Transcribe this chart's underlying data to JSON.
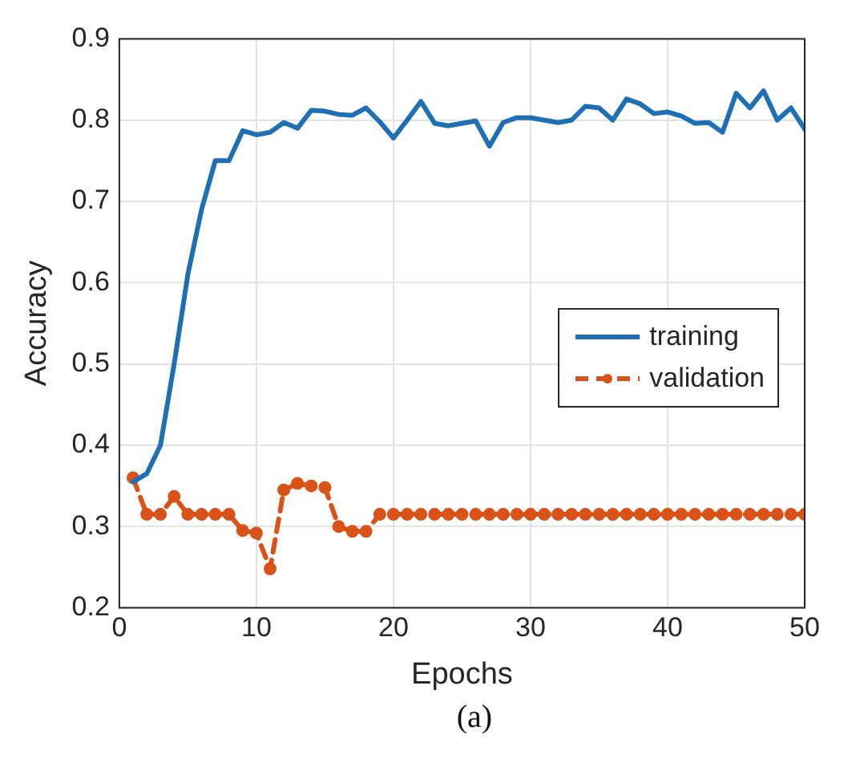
{
  "chart_data": {
    "type": "line",
    "xlabel": "Epochs",
    "ylabel": "Accuracy",
    "x": [
      1,
      2,
      3,
      4,
      5,
      6,
      7,
      8,
      9,
      10,
      11,
      12,
      13,
      14,
      15,
      16,
      17,
      18,
      19,
      20,
      21,
      22,
      23,
      24,
      25,
      26,
      27,
      28,
      29,
      30,
      31,
      32,
      33,
      34,
      35,
      36,
      37,
      38,
      39,
      40,
      41,
      42,
      43,
      44,
      45,
      46,
      47,
      48,
      49,
      50
    ],
    "series": [
      {
        "name": "training",
        "color": "#1f6fb4",
        "line_style": "solid",
        "marker": "none",
        "values": [
          0.355,
          0.365,
          0.4,
          0.5,
          0.61,
          0.69,
          0.75,
          0.75,
          0.787,
          0.782,
          0.785,
          0.797,
          0.79,
          0.812,
          0.811,
          0.807,
          0.806,
          0.815,
          0.798,
          0.778,
          0.8,
          0.823,
          0.796,
          0.793,
          0.796,
          0.799,
          0.768,
          0.797,
          0.803,
          0.803,
          0.8,
          0.797,
          0.8,
          0.817,
          0.815,
          0.8,
          0.826,
          0.82,
          0.808,
          0.81,
          0.805,
          0.796,
          0.797,
          0.785,
          0.833,
          0.815,
          0.836,
          0.8,
          0.815,
          0.789
        ]
      },
      {
        "name": "validation",
        "color": "#d95319",
        "line_style": "dashed",
        "marker": "circle",
        "values": [
          0.36,
          0.315,
          0.315,
          0.337,
          0.315,
          0.315,
          0.315,
          0.315,
          0.295,
          0.292,
          0.248,
          0.345,
          0.353,
          0.35,
          0.348,
          0.3,
          0.294,
          0.294,
          0.315,
          0.315,
          0.315,
          0.315,
          0.315,
          0.315,
          0.315,
          0.315,
          0.315,
          0.315,
          0.315,
          0.315,
          0.315,
          0.315,
          0.315,
          0.315,
          0.315,
          0.315,
          0.315,
          0.315,
          0.315,
          0.315,
          0.315,
          0.315,
          0.315,
          0.315,
          0.315,
          0.315,
          0.315,
          0.315,
          0.315,
          0.315
        ]
      }
    ],
    "xlim": [
      0,
      50
    ],
    "xticks": [
      0,
      10,
      20,
      30,
      40,
      50
    ],
    "ylim": [
      0.2,
      0.9
    ],
    "yticks": [
      0.2,
      0.3,
      0.4,
      0.5,
      0.6,
      0.7,
      0.8,
      0.9
    ],
    "grid": true,
    "legend": "right",
    "annotations": [
      "(a)"
    ]
  }
}
